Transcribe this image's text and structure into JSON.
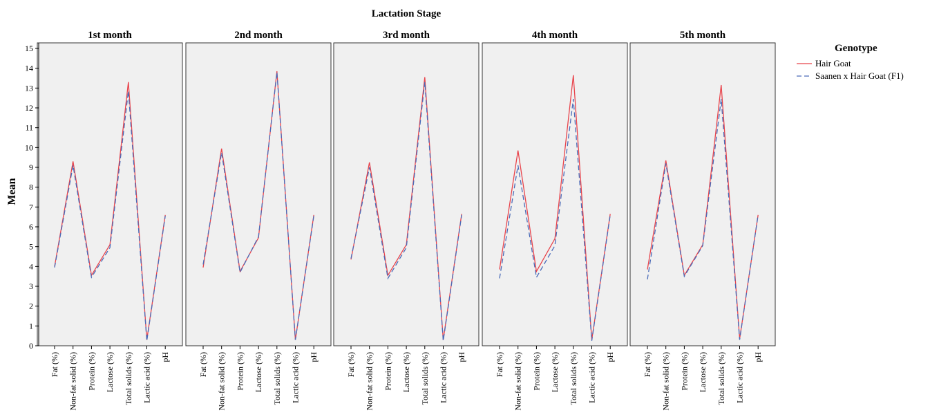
{
  "chart_data": {
    "type": "line",
    "title": "Lactation Stage",
    "ylabel": "Mean",
    "ylim": [
      0,
      15
    ],
    "yticks": [
      0,
      1,
      2,
      3,
      4,
      5,
      6,
      7,
      8,
      9,
      10,
      11,
      12,
      13,
      14,
      15
    ],
    "categories": [
      "Fat (%)",
      "Non-fat solid (%)",
      "Protein (%)",
      "Lactose (%)",
      "Total solids (%)",
      "Lactic acid (%)",
      "pH"
    ],
    "legend": {
      "title": "Genotype",
      "position": "right",
      "items": [
        {
          "name": "Hair Goat",
          "color": "#e8434b",
          "style": "solid"
        },
        {
          "name": "Saanen x Hair Goat (F1)",
          "color": "#4a6bb8",
          "style": "dashed"
        }
      ]
    },
    "grid": false,
    "panels": [
      {
        "label": "1st month",
        "series": [
          {
            "name": "Hair Goat",
            "values": [
              4.0,
              9.3,
              3.55,
              5.1,
              13.3,
              0.3,
              6.6
            ]
          },
          {
            "name": "Saanen x Hair Goat (F1)",
            "values": [
              3.95,
              9.1,
              3.45,
              4.95,
              12.85,
              0.25,
              6.55
            ]
          }
        ]
      },
      {
        "label": "2nd month",
        "series": [
          {
            "name": "Hair Goat",
            "values": [
              3.95,
              9.95,
              3.75,
              5.45,
              13.85,
              0.3,
              6.6
            ]
          },
          {
            "name": "Saanen x Hair Goat (F1)",
            "values": [
              4.1,
              9.75,
              3.7,
              5.5,
              13.8,
              0.3,
              6.55
            ]
          }
        ]
      },
      {
        "label": "3rd month",
        "series": [
          {
            "name": "Hair Goat",
            "values": [
              4.35,
              9.25,
              3.55,
              5.1,
              13.55,
              0.3,
              6.65
            ]
          },
          {
            "name": "Saanen x Hair Goat (F1)",
            "values": [
              4.4,
              9.0,
              3.4,
              4.95,
              13.3,
              0.25,
              6.6
            ]
          }
        ]
      },
      {
        "label": "4th month",
        "series": [
          {
            "name": "Hair Goat",
            "values": [
              3.85,
              9.85,
              3.75,
              5.4,
              13.65,
              0.3,
              6.65
            ]
          },
          {
            "name": "Saanen x Hair Goat (F1)",
            "values": [
              3.4,
              9.1,
              3.45,
              5.05,
              12.45,
              0.25,
              6.6
            ]
          }
        ]
      },
      {
        "label": "5th month",
        "series": [
          {
            "name": "Hair Goat",
            "values": [
              3.85,
              9.35,
              3.55,
              5.1,
              13.15,
              0.35,
              6.6
            ]
          },
          {
            "name": "Saanen x Hair Goat (F1)",
            "values": [
              3.35,
              9.2,
              3.5,
              5.05,
              12.45,
              0.3,
              6.6
            ]
          }
        ]
      }
    ]
  }
}
